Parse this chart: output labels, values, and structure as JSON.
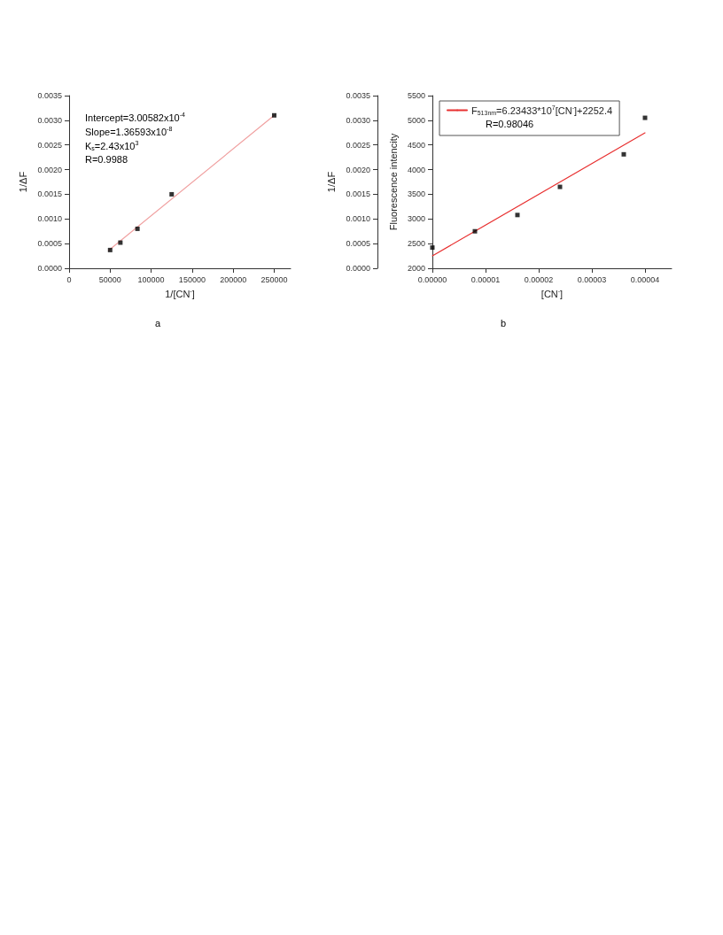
{
  "chart_data": [
    {
      "type": "scatter",
      "xlabel": "1/[CN$^{-}$]",
      "ylabel": "1/ΔF",
      "xlim": [
        0,
        270000
      ],
      "xticks": [
        0,
        50000,
        100000,
        150000,
        200000,
        250000
      ],
      "ylim": [
        0,
        0.0035
      ],
      "yticks": [
        {
          "value": 0,
          "label": "0.0000"
        },
        {
          "value": 0.0005,
          "label": "0.0005"
        },
        {
          "value": 0.001,
          "label": "0.0010"
        },
        {
          "value": 0.0015,
          "label": "0.0015"
        },
        {
          "value": 0.002,
          "label": "0.0020"
        },
        {
          "value": 0.0025,
          "label": "0.0025"
        },
        {
          "value": 0.003,
          "label": "0.0030"
        },
        {
          "value": 0.0035,
          "label": "0.0035"
        }
      ],
      "series": [
        {
          "type": "scatter",
          "marker": "square",
          "color": "#000000",
          "x": [
            50000,
            62500,
            83300,
            125000,
            250000
          ],
          "values": [
            0.00037,
            0.00052,
            0.0008,
            0.0015,
            0.0031
          ]
        },
        {
          "type": "line",
          "marker": "none",
          "color": "#f0a0a0",
          "x": [
            48000,
            250000
          ],
          "values": [
            0.00036,
            0.0031
          ]
        }
      ],
      "annotations": [
        "Intercept=3.00582x10$^{-4}$",
        "Slope=1.36593x10$^{-8}$",
        "K$_{s}$=2.43x10$^{3}$",
        "R=0.9988",
        "a"
      ],
      "grid": false,
      "legend": false
    },
    {
      "type": "scatter",
      "xlabel": "[CN$^{-}$]",
      "ylabel": "Fluorescence intencity",
      "y2label": "1/ΔF",
      "xlim": [
        0,
        4.5e-05
      ],
      "xticks": [
        {
          "value": 0,
          "label": "0.00000"
        },
        {
          "value": 1e-05,
          "label": "0.00001"
        },
        {
          "value": 2e-05,
          "label": "0.00002"
        },
        {
          "value": 3e-05,
          "label": "0.00003"
        },
        {
          "value": 4e-05,
          "label": "0.00004"
        }
      ],
      "ylim": [
        2000,
        5500
      ],
      "yticks": [
        2000,
        2500,
        3000,
        3500,
        4000,
        4500,
        5000,
        5500
      ],
      "y2lim": [
        0,
        0.0035
      ],
      "y2ticks": [
        {
          "value": 0,
          "label": "0.0000"
        },
        {
          "value": 0.0005,
          "label": "0.0005"
        },
        {
          "value": 0.001,
          "label": "0.0010"
        },
        {
          "value": 0.0015,
          "label": "0.0015"
        },
        {
          "value": 0.002,
          "label": "0.0020"
        },
        {
          "value": 0.0025,
          "label": "0.0025"
        },
        {
          "value": 0.003,
          "label": "0.0030"
        },
        {
          "value": 0.0035,
          "label": "0.0035"
        }
      ],
      "series": [
        {
          "type": "scatter",
          "marker": "square",
          "color": "#000000",
          "x": [
            0,
            8e-06,
            1.6e-05,
            2.4e-05,
            3.6e-05,
            4e-05
          ],
          "values": [
            2420,
            2750,
            3080,
            3650,
            4310,
            5050
          ]
        },
        {
          "type": "line",
          "marker": "none",
          "name": "F$_{513nm}$=6.23433*10$^{7}$[CN$^{-}$]+2252.4",
          "color": "#e83030",
          "x": [
            0,
            4e-05
          ],
          "values": [
            2252,
            4746
          ]
        }
      ],
      "annotations": [
        "R=0.98046",
        "b"
      ],
      "grid": false,
      "legend": "top left"
    }
  ]
}
